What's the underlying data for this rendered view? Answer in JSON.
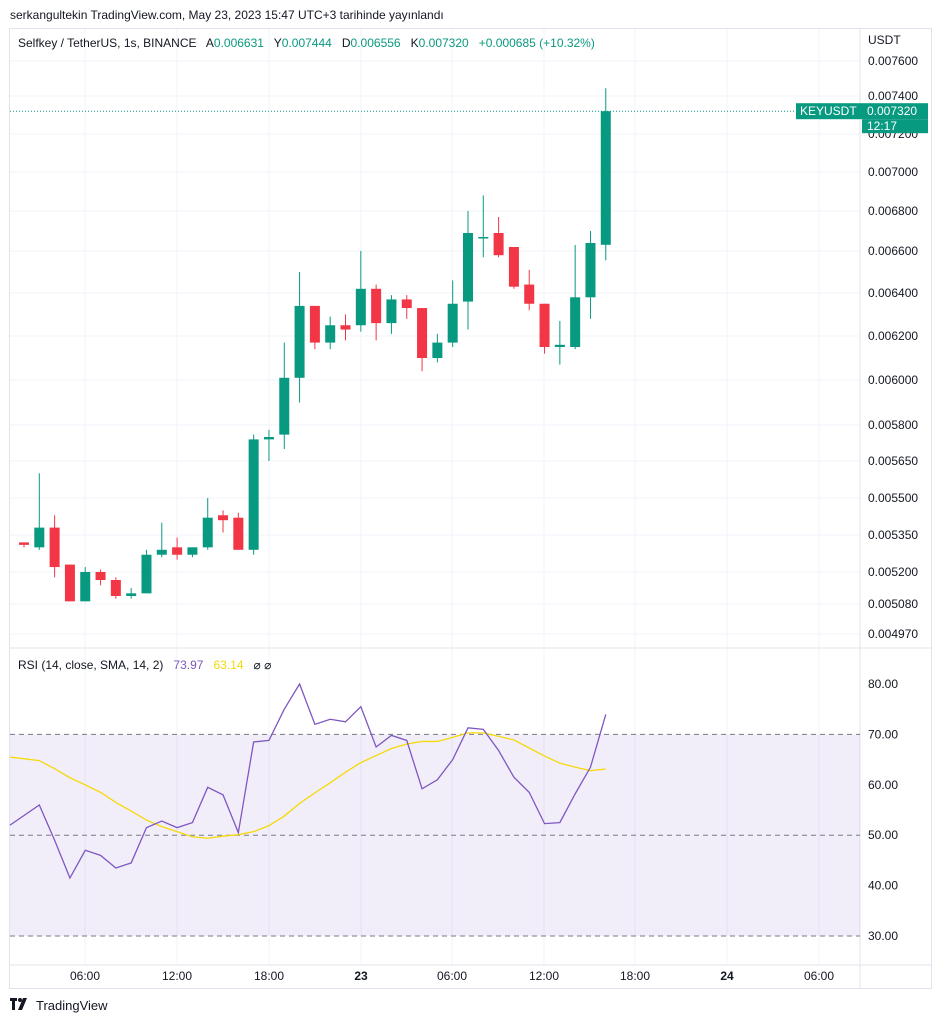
{
  "header": {
    "published": "serkangultekin TradingView.com, May 23, 2023 15:47 UTC+3 tarihinde yayınlandı"
  },
  "legend": {
    "symbol": "Selfkey / TetherUS, 1s, BINANCE",
    "open_label": "A",
    "open": "0.006631",
    "high_label": "Y",
    "high": "0.007444",
    "low_label": "D",
    "low": "0.006556",
    "close_label": "K",
    "close": "0.007320",
    "change": "+0.000685 (+10.32%)"
  },
  "price_axis": {
    "currency": "USDT",
    "ticks": [
      "0.007600",
      "0.007400",
      "0.007200",
      "0.007000",
      "0.006800",
      "0.006600",
      "0.006400",
      "0.006200",
      "0.006000",
      "0.005800",
      "0.005650",
      "0.005500",
      "0.005350",
      "0.005200",
      "0.005080",
      "0.004970"
    ]
  },
  "price_tag": {
    "symbol": "KEYUSDT",
    "price": "0.007320",
    "countdown": "12:17"
  },
  "rsi": {
    "label": "RSI (14, close, SMA, 14, 2)",
    "value": "73.97",
    "ma_value": "63.14",
    "extra": "⌀ ⌀",
    "ticks": [
      "80.00",
      "70.00",
      "60.00",
      "50.00",
      "40.00",
      "30.00"
    ],
    "upper_band": 70,
    "lower_band": 30,
    "mid_band": 50
  },
  "time_axis": {
    "ticks": [
      "06:00",
      "12:00",
      "18:00",
      "23",
      "06:00",
      "12:00",
      "18:00",
      "24",
      "06:00"
    ]
  },
  "footer": {
    "brand": "TradingView"
  },
  "colors": {
    "up": "#089981",
    "down": "#f23645",
    "rsi": "#7e57c2",
    "rsi_ma": "#f5d90a",
    "band_fill": "#7e57c2"
  },
  "chart_data": {
    "type": "candlestick",
    "interval": "1h",
    "candles": [
      {
        "o": 0.00532,
        "h": 0.00532,
        "l": 0.0053,
        "c": 0.00531
      },
      {
        "o": 0.0053,
        "h": 0.0056,
        "l": 0.00529,
        "c": 0.00538
      },
      {
        "o": 0.00538,
        "h": 0.00543,
        "l": 0.00518,
        "c": 0.00522
      },
      {
        "o": 0.00523,
        "h": 0.00523,
        "l": 0.00509,
        "c": 0.00509
      },
      {
        "o": 0.00509,
        "h": 0.00522,
        "l": 0.00509,
        "c": 0.0052
      },
      {
        "o": 0.0052,
        "h": 0.00521,
        "l": 0.00515,
        "c": 0.00517
      },
      {
        "o": 0.00517,
        "h": 0.00518,
        "l": 0.0051,
        "c": 0.00511
      },
      {
        "o": 0.00511,
        "h": 0.00514,
        "l": 0.0051,
        "c": 0.00512
      },
      {
        "o": 0.00512,
        "h": 0.00529,
        "l": 0.00512,
        "c": 0.00527
      },
      {
        "o": 0.00527,
        "h": 0.0054,
        "l": 0.00526,
        "c": 0.00529
      },
      {
        "o": 0.0053,
        "h": 0.00534,
        "l": 0.00525,
        "c": 0.00527
      },
      {
        "o": 0.00527,
        "h": 0.0053,
        "l": 0.00526,
        "c": 0.0053
      },
      {
        "o": 0.0053,
        "h": 0.0055,
        "l": 0.00529,
        "c": 0.00542
      },
      {
        "o": 0.00543,
        "h": 0.00545,
        "l": 0.00536,
        "c": 0.00541
      },
      {
        "o": 0.00542,
        "h": 0.00544,
        "l": 0.00529,
        "c": 0.00529
      },
      {
        "o": 0.00529,
        "h": 0.00576,
        "l": 0.00527,
        "c": 0.00574
      },
      {
        "o": 0.00574,
        "h": 0.00578,
        "l": 0.00565,
        "c": 0.00575
      },
      {
        "o": 0.00576,
        "h": 0.00617,
        "l": 0.0057,
        "c": 0.00601
      },
      {
        "o": 0.00601,
        "h": 0.0065,
        "l": 0.0059,
        "c": 0.00634
      },
      {
        "o": 0.00634,
        "h": 0.00634,
        "l": 0.00614,
        "c": 0.00617
      },
      {
        "o": 0.00617,
        "h": 0.00629,
        "l": 0.00614,
        "c": 0.00625
      },
      {
        "o": 0.00625,
        "h": 0.0063,
        "l": 0.00618,
        "c": 0.00623
      },
      {
        "o": 0.00625,
        "h": 0.0066,
        "l": 0.00622,
        "c": 0.00642
      },
      {
        "o": 0.00642,
        "h": 0.00644,
        "l": 0.00618,
        "c": 0.00626
      },
      {
        "o": 0.00626,
        "h": 0.00639,
        "l": 0.00621,
        "c": 0.00637
      },
      {
        "o": 0.00637,
        "h": 0.00639,
        "l": 0.00628,
        "c": 0.00633
      },
      {
        "o": 0.00633,
        "h": 0.00633,
        "l": 0.00604,
        "c": 0.0061
      },
      {
        "o": 0.0061,
        "h": 0.00621,
        "l": 0.00608,
        "c": 0.00617
      },
      {
        "o": 0.00617,
        "h": 0.00646,
        "l": 0.00615,
        "c": 0.00635
      },
      {
        "o": 0.00636,
        "h": 0.0068,
        "l": 0.00623,
        "c": 0.00669
      },
      {
        "o": 0.00667,
        "h": 0.00688,
        "l": 0.00657,
        "c": 0.00667
      },
      {
        "o": 0.00669,
        "h": 0.00677,
        "l": 0.00657,
        "c": 0.00658
      },
      {
        "o": 0.00662,
        "h": 0.00662,
        "l": 0.00642,
        "c": 0.00643
      },
      {
        "o": 0.00644,
        "h": 0.00651,
        "l": 0.00632,
        "c": 0.00635
      },
      {
        "o": 0.00635,
        "h": 0.00635,
        "l": 0.00612,
        "c": 0.00615
      },
      {
        "o": 0.00615,
        "h": 0.00627,
        "l": 0.00607,
        "c": 0.00616
      },
      {
        "o": 0.00615,
        "h": 0.00663,
        "l": 0.00614,
        "c": 0.00638
      },
      {
        "o": 0.00638,
        "h": 0.0067,
        "l": 0.00628,
        "c": 0.00664
      },
      {
        "o": 0.006631,
        "h": 0.007444,
        "l": 0.006556,
        "c": 0.00732
      }
    ],
    "rsi_values": [
      52,
      56,
      49,
      41.5,
      47,
      46,
      43.5,
      44.5,
      51.5,
      52.8,
      51.5,
      52.5,
      59.5,
      58,
      50.5,
      68.5,
      68.8,
      75,
      80,
      72,
      73,
      72.5,
      75.5,
      67.5,
      69.8,
      68.8,
      59.2,
      61,
      65,
      71.3,
      71,
      66.8,
      61.5,
      58.5,
      52.3,
      52.5,
      58.2,
      63.5,
      73.97
    ],
    "rsi_ma_values": [
      65.5,
      64.8,
      63.2,
      61.4,
      60.0,
      58.5,
      56.5,
      54.8,
      53.0,
      51.7,
      50.7,
      49.7,
      49.4,
      49.8,
      50.1,
      50.7,
      51.9,
      53.8,
      56.3,
      58.4,
      60.4,
      62.5,
      64.4,
      65.8,
      67.2,
      68.1,
      68.6,
      68.6,
      69.4,
      70.3,
      70.3,
      69.6,
      68.9,
      67.3,
      65.7,
      64.3,
      63.5,
      62.8,
      63.14
    ],
    "price_ylim_labels_nonlinear": true
  }
}
